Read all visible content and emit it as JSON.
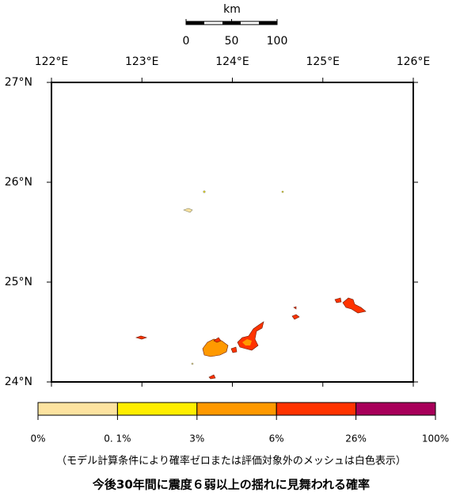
{
  "map": {
    "scale": {
      "unit": "km",
      "labels": [
        "0",
        "50",
        "100"
      ]
    },
    "lon_labels": [
      "122°E",
      "123°E",
      "124°E",
      "125°E",
      "126°E"
    ],
    "lat_labels": [
      "27°N",
      "26°N",
      "25°N",
      "24°N"
    ],
    "legend": {
      "labels": [
        "0%",
        "0. 1%",
        "3%",
        "6%",
        "26%",
        "100%"
      ],
      "colors": [
        "#fde3a0",
        "#ffee00",
        "#ff9900",
        "#ff3300",
        "#a8005a"
      ]
    },
    "note": "（モデル計算条件により確率ゼロまたは評価対象外のメッシュは白色表示）",
    "title": "今後30年間に震度６弱以上の揺れに見舞われる確率"
  }
}
